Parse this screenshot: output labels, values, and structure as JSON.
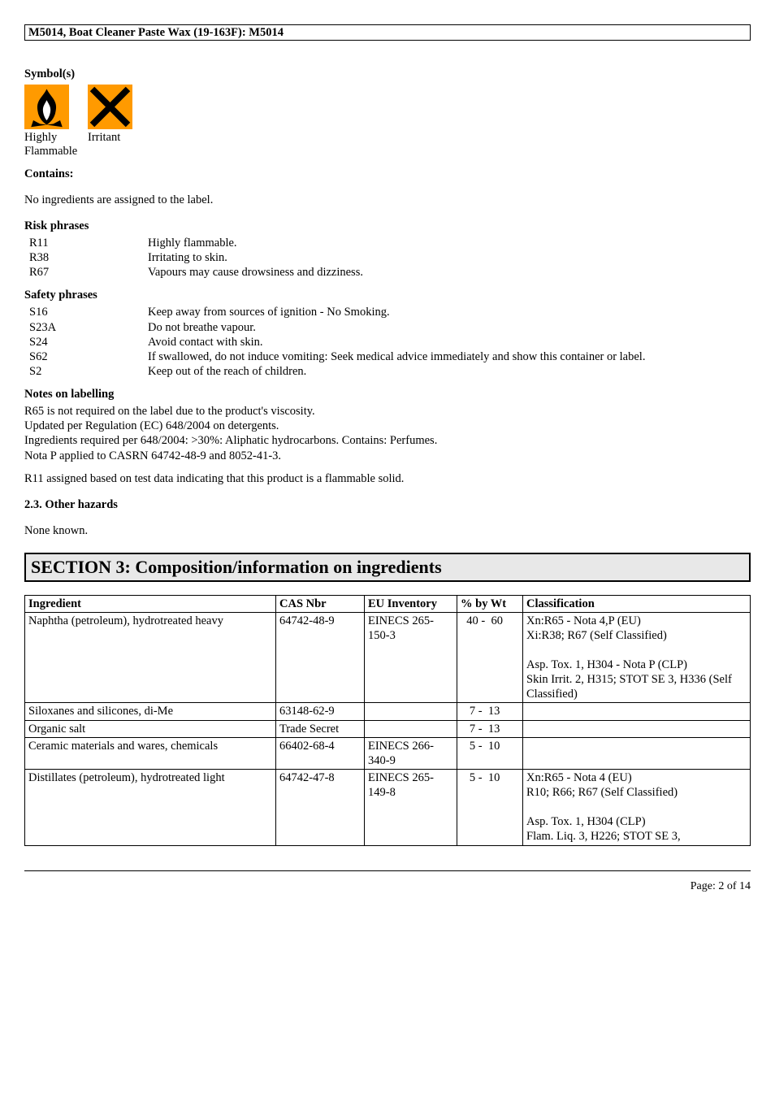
{
  "header": "M5014, Boat Cleaner Paste Wax (19-163F): M5014",
  "symbols_heading": "Symbol(s)",
  "symbols": {
    "flame_label1": "Highly",
    "flame_label2": "Flammable",
    "x_label": "Irritant"
  },
  "contains_heading": "Contains:",
  "contains_text": "No ingredients are assigned to the label.",
  "risk_heading": "Risk phrases",
  "risk_phrases": [
    {
      "code": "R11",
      "text": "Highly flammable."
    },
    {
      "code": "R38",
      "text": "Irritating to skin."
    },
    {
      "code": "R67",
      "text": "Vapours may cause drowsiness and dizziness."
    }
  ],
  "safety_heading": "Safety phrases",
  "safety_phrases": [
    {
      "code": "S16",
      "text": "Keep away from sources of ignition - No Smoking."
    },
    {
      "code": "S23A",
      "text": "Do not breathe vapour."
    },
    {
      "code": "S24",
      "text": "Avoid contact with skin."
    },
    {
      "code": "S62",
      "text": "If swallowed, do not induce vomiting:  Seek medical advice immediately and show this container or label."
    },
    {
      "code": "S2",
      "text": "Keep out of the reach of children."
    }
  ],
  "notes_heading": "Notes on labelling",
  "notes_lines": [
    "R65 is not required on the label due to the product's viscosity.",
    "Updated per Regulation (EC) 648/2004 on detergents.",
    "Ingredients required per 648/2004: >30%: Aliphatic hydrocarbons. Contains: Perfumes.",
    "Nota P applied to CASRN 64742-48-9 and 8052-41-3."
  ],
  "notes_extra": "R11 assigned based on test data indicating that this product is a flammable solid.",
  "other_hazards_heading": "2.3. Other hazards",
  "other_hazards_text": "None known.",
  "section3_title": "SECTION 3: Composition/information on ingredients",
  "table": {
    "headers": {
      "ingredient": "Ingredient",
      "cas": "CAS Nbr",
      "eu": "EU Inventory",
      "wt": "% by Wt",
      "class": "Classification"
    },
    "rows": [
      {
        "ingredient": "Naphtha (petroleum), hydrotreated heavy",
        "cas": "64742-48-9",
        "eu": "EINECS 265-150-3",
        "wt": "  40 -  60",
        "class": "Xn:R65 - Nota 4,P (EU)\nXi:R38; R67 (Self Classified)\n\nAsp. Tox. 1, H304 - Nota P (CLP)\nSkin Irrit. 2, H315; STOT SE 3, H336 (Self Classified)"
      },
      {
        "ingredient": "Siloxanes and silicones, di-Me",
        "cas": "63148-62-9",
        "eu": "",
        "wt": "   7 -  13",
        "class": ""
      },
      {
        "ingredient": "Organic salt",
        "cas": "Trade Secret",
        "eu": "",
        "wt": "   7 -  13",
        "class": ""
      },
      {
        "ingredient": "Ceramic materials and wares, chemicals",
        "cas": "66402-68-4",
        "eu": "EINECS 266-340-9",
        "wt": "   5 -  10",
        "class": ""
      },
      {
        "ingredient": "Distillates (petroleum), hydrotreated light",
        "cas": "64742-47-8",
        "eu": "EINECS 265-149-8",
        "wt": "   5 -  10",
        "class": "Xn:R65 - Nota 4 (EU)\nR10; R66; R67 (Self Classified)\n\nAsp. Tox. 1, H304 (CLP)\nFlam. Liq. 3, H226; STOT SE 3,"
      }
    ]
  },
  "footer": "Page: 2 of  14"
}
